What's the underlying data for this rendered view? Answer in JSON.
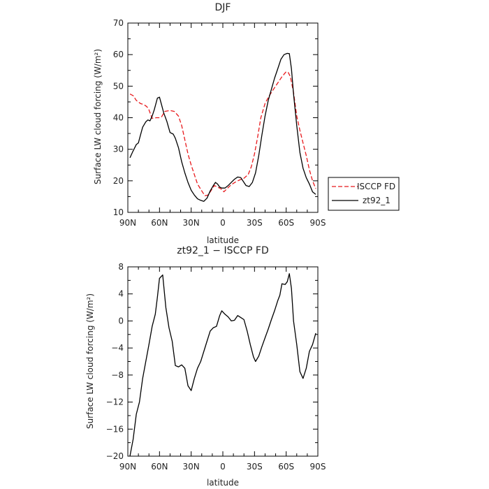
{
  "chart_data": [
    {
      "type": "line",
      "title": "DJF",
      "xlabel": "latitude",
      "ylabel": "Surface LW cloud forcing (W/m²)",
      "xlim": [
        90,
        -90
      ],
      "ylim": [
        10,
        70
      ],
      "xticks": [
        "90N",
        "60N",
        "30N",
        "0",
        "30S",
        "60S",
        "90S"
      ],
      "xtick_values": [
        90,
        60,
        30,
        0,
        -30,
        -60,
        -90
      ],
      "yticks": [
        "10",
        "20",
        "30",
        "40",
        "50",
        "60",
        "70"
      ],
      "ytick_values": [
        10,
        20,
        30,
        40,
        50,
        60,
        70
      ],
      "legend": "right",
      "series": [
        {
          "name": "ISCCP FD",
          "color": "#e8191c",
          "dash": "dashed",
          "x": [
            88,
            85,
            82,
            78,
            75,
            72,
            70,
            67,
            63,
            60,
            58,
            55,
            50,
            46,
            42,
            39,
            36,
            33,
            30,
            27,
            24,
            20,
            17,
            14,
            11,
            8,
            5,
            2,
            -1,
            -4,
            -8,
            -12,
            -16,
            -20,
            -24,
            -27,
            -30,
            -33,
            -36,
            -40,
            -44,
            -48,
            -52,
            -56,
            -60,
            -62,
            -64,
            -67,
            -70,
            -73,
            -76,
            -79,
            -82,
            -85,
            -88
          ],
          "y": [
            47.5,
            47.0,
            45.5,
            44.5,
            44.2,
            43.5,
            42.5,
            39.8,
            40.0,
            40.0,
            40.3,
            42.0,
            42.3,
            42.0,
            40.5,
            37.5,
            33.0,
            28.5,
            25.0,
            22.0,
            19.0,
            16.8,
            15.3,
            15.5,
            17.0,
            18.5,
            18.0,
            17.5,
            16.5,
            17.5,
            18.8,
            19.6,
            20.3,
            20.8,
            22.0,
            24.5,
            28.5,
            34.0,
            40.0,
            44.5,
            47.0,
            49.0,
            51.0,
            53.0,
            54.6,
            54.3,
            53.0,
            48.0,
            40.5,
            36.0,
            32.0,
            28.0,
            23.5,
            20.0,
            17.5
          ]
        },
        {
          "name": "zt92_1",
          "color": "#000000",
          "dash": "solid",
          "x": [
            88,
            85,
            82,
            80,
            78,
            76,
            73,
            71,
            69,
            67,
            65,
            62,
            60,
            58,
            56,
            53,
            50,
            47,
            45,
            42,
            39,
            36,
            33,
            30,
            27,
            24,
            21,
            18,
            15,
            12,
            9,
            7,
            5,
            3,
            1,
            -2,
            -5,
            -8,
            -11,
            -14,
            -17,
            -20,
            -22,
            -25,
            -28,
            -31,
            -34,
            -37,
            -40,
            -43,
            -46,
            -49,
            -52,
            -55,
            -58,
            -61,
            -63,
            -65,
            -67,
            -70,
            -73,
            -76,
            -79,
            -82,
            -85,
            -88
          ],
          "y": [
            27.3,
            29.5,
            31.5,
            32.0,
            34.5,
            37.0,
            38.7,
            39.3,
            39.0,
            40.5,
            42.5,
            46.2,
            46.5,
            44.0,
            41.5,
            38.8,
            35.3,
            34.8,
            33.5,
            30.5,
            26.0,
            22.5,
            19.5,
            17.0,
            15.5,
            14.3,
            13.8,
            13.5,
            14.5,
            16.8,
            18.5,
            19.5,
            19.0,
            18.0,
            17.7,
            17.7,
            18.5,
            19.5,
            20.5,
            21.2,
            21.0,
            19.5,
            18.5,
            18.2,
            19.5,
            22.5,
            28.0,
            34.5,
            40.5,
            45.5,
            49.0,
            52.5,
            55.5,
            58.5,
            60.0,
            60.4,
            60.3,
            55.5,
            47.5,
            37.5,
            29.0,
            24.0,
            21.0,
            19.0,
            16.5,
            15.7
          ]
        }
      ]
    },
    {
      "type": "line",
      "title": "zt92_1 − ISCCP FD",
      "xlabel": "latitude",
      "ylabel": "Surface LW cloud forcing (W/m²)",
      "xlim": [
        90,
        -90
      ],
      "ylim": [
        -20,
        8
      ],
      "xticks": [
        "90N",
        "60N",
        "30N",
        "0",
        "30S",
        "60S",
        "90S"
      ],
      "xtick_values": [
        90,
        60,
        30,
        0,
        -30,
        -60,
        -90
      ],
      "yticks": [
        "8",
        "4",
        "0",
        "−4",
        "−8",
        "−12",
        "−16",
        "−20"
      ],
      "ytick_values": [
        8,
        4,
        0,
        -4,
        -8,
        -12,
        -16,
        -20
      ],
      "series": [
        {
          "name": "",
          "color": "#000000",
          "dash": "solid",
          "x": [
            88,
            85,
            82,
            79,
            76,
            73,
            70,
            67,
            64,
            62,
            60,
            57,
            54,
            51,
            48,
            45,
            42,
            39,
            36,
            33,
            30,
            27,
            24,
            21,
            18,
            15,
            12,
            9,
            6,
            3,
            1,
            -2,
            -5,
            -8,
            -11,
            -14,
            -17,
            -20,
            -23,
            -26,
            -29,
            -31,
            -34,
            -37,
            -40,
            -43,
            -46,
            -49,
            -52,
            -54,
            -56,
            -59,
            -61,
            -63,
            -65,
            -67,
            -70,
            -73,
            -76,
            -79,
            -82,
            -85,
            -88
          ],
          "y": [
            -20.0,
            -17.5,
            -13.8,
            -12.0,
            -8.5,
            -6.0,
            -3.5,
            -0.8,
            1.0,
            3.5,
            6.3,
            6.8,
            2.0,
            -1.0,
            -3.0,
            -6.6,
            -6.8,
            -6.5,
            -7.0,
            -9.6,
            -10.3,
            -8.5,
            -7.0,
            -6.0,
            -4.5,
            -3.0,
            -1.5,
            -1.0,
            -0.8,
            0.8,
            1.5,
            1.0,
            0.6,
            0.0,
            0.1,
            0.8,
            0.5,
            0.2,
            -1.5,
            -3.5,
            -5.3,
            -6.0,
            -5.2,
            -3.8,
            -2.5,
            -1.2,
            0.2,
            1.5,
            3.0,
            3.8,
            5.5,
            5.4,
            5.8,
            7.0,
            4.8,
            0.0,
            -3.5,
            -7.5,
            -8.5,
            -7.0,
            -4.5,
            -3.5,
            -1.8
          ]
        }
      ]
    }
  ]
}
